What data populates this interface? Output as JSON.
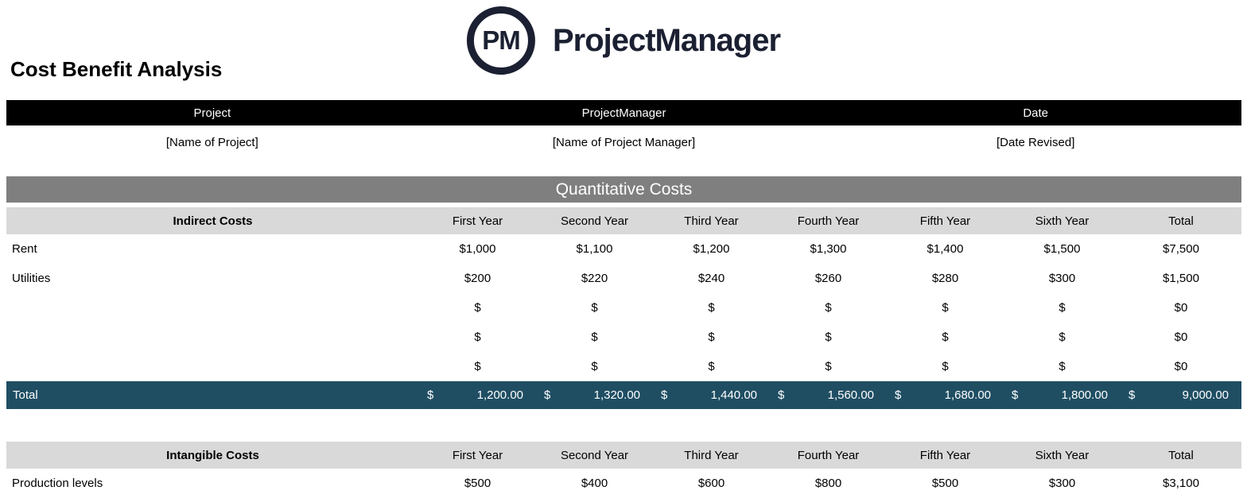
{
  "brand": {
    "initials": "PM",
    "name": "ProjectManager"
  },
  "page": {
    "title": "Cost Benefit Analysis"
  },
  "info": {
    "headers": [
      "Project",
      "ProjectManager",
      "Date"
    ],
    "values": [
      "[Name of Project]",
      "[Name of Project Manager]",
      "[Date Revised]"
    ]
  },
  "section_title": "Quantitative Costs",
  "tables": [
    {
      "group_label": "Indirect Costs",
      "columns": [
        "First Year",
        "Second Year",
        "Third Year",
        "Fourth Year",
        "Fifth Year",
        "Sixth Year",
        "Total"
      ],
      "rows": [
        {
          "label": "Rent",
          "values": [
            "$1,000",
            "$1,100",
            "$1,200",
            "$1,300",
            "$1,400",
            "$1,500",
            "$7,500"
          ]
        },
        {
          "label": "Utilities",
          "values": [
            "$200",
            "$220",
            "$240",
            "$260",
            "$280",
            "$300",
            "$1,500"
          ]
        },
        {
          "label": "",
          "values": [
            "$",
            "$",
            "$",
            "$",
            "$",
            "$",
            "$0"
          ]
        },
        {
          "label": "",
          "values": [
            "$",
            "$",
            "$",
            "$",
            "$",
            "$",
            "$0"
          ]
        },
        {
          "label": "",
          "values": [
            "$",
            "$",
            "$",
            "$",
            "$",
            "$",
            "$0"
          ]
        }
      ],
      "total": {
        "label": "Total",
        "currency": "$",
        "values": [
          "1,200.00",
          "1,320.00",
          "1,440.00",
          "1,560.00",
          "1,680.00",
          "1,800.00",
          "9,000.00"
        ]
      }
    },
    {
      "group_label": "Intangible Costs",
      "columns": [
        "First Year",
        "Second Year",
        "Third Year",
        "Fourth Year",
        "Fifth Year",
        "Sixth Year",
        "Total"
      ],
      "rows": [
        {
          "label": "Production levels",
          "values": [
            "$500",
            "$400",
            "$600",
            "$800",
            "$500",
            "$300",
            "$3,100"
          ]
        }
      ]
    }
  ],
  "colors": {
    "bar-black": "#000000",
    "section-gray": "#7f7f7f",
    "header-gray": "#d9d9d9",
    "total-blue": "#1f4e63",
    "brand-navy": "#1b2032"
  }
}
